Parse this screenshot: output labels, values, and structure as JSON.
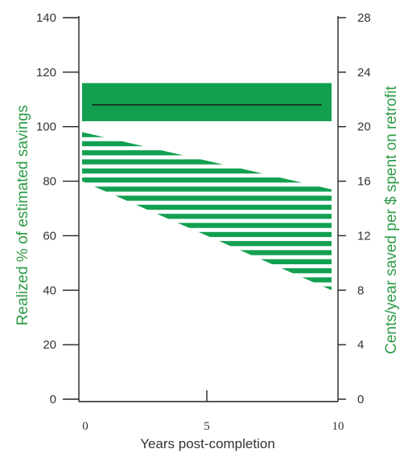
{
  "chart_data": {
    "type": "area",
    "title": "",
    "xlabel": "Years post-completion",
    "ylabel_left": "Realized % of estimated savings",
    "ylabel_right": "Cents/year saved per $ spent on retrofit",
    "xlim": [
      0,
      10
    ],
    "ylim_left": [
      0,
      140
    ],
    "ylim_right": [
      0,
      28
    ],
    "x_ticks": [
      "0",
      "5",
      "10"
    ],
    "y_ticks_left": [
      "0",
      "20",
      "40",
      "60",
      "80",
      "100",
      "120",
      "140"
    ],
    "y_ticks_right": [
      "0",
      "4",
      "8",
      "12",
      "16",
      "20",
      "24",
      "28"
    ],
    "grid": false,
    "series": [
      {
        "style": "solid band",
        "x": [
          0,
          10
        ],
        "lower": [
          102,
          102
        ],
        "upper": [
          116,
          116
        ],
        "center": [
          108,
          108
        ]
      },
      {
        "style": "hatched band",
        "x": [
          0,
          10
        ],
        "lower": [
          80,
          40
        ],
        "upper": [
          98,
          77
        ]
      }
    ],
    "colors": {
      "band": "#12a050",
      "center_line": "#111111",
      "axis": "#222222"
    }
  }
}
